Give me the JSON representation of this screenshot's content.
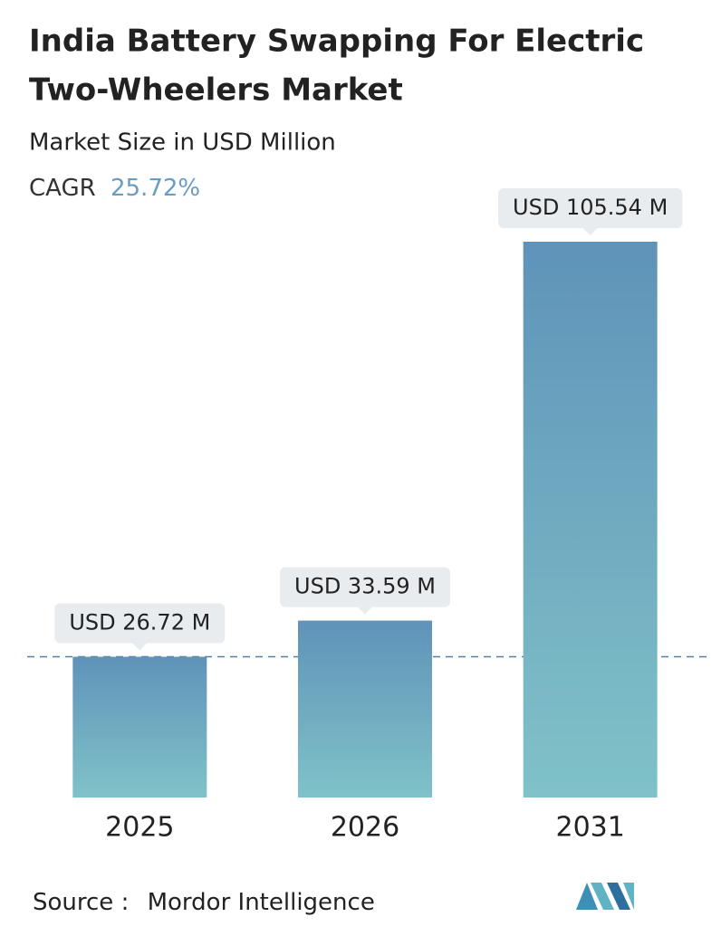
{
  "chart_data": {
    "type": "bar",
    "title": [
      "India Battery Swapping For Electric",
      "Two-Wheelers Market"
    ],
    "subtitle": "Market Size in USD Million",
    "cagr_label": "CAGR",
    "cagr": "25.72%",
    "categories": [
      "2025",
      "2026",
      "2031"
    ],
    "values": [
      26.72,
      33.59,
      105.54
    ],
    "value_labels": [
      "USD 26.72 M",
      "USD 33.59 M",
      "USD 105.54 M"
    ],
    "source_label": "Source :",
    "source": "Mordor Intelligence"
  }
}
